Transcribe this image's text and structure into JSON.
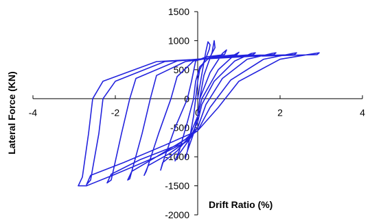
{
  "chart_data": {
    "type": "line",
    "title": "",
    "xlabel": "Drift Ratio (%)",
    "ylabel": "Lateral Force (KN)",
    "xlim": [
      -4,
      4
    ],
    "ylim": [
      -2000,
      1500
    ],
    "x_ticks": [
      -4,
      -2,
      0,
      2,
      4
    ],
    "y_ticks": [
      -2000,
      -1500,
      -1000,
      -500,
      0,
      500,
      1000,
      1500
    ],
    "x_tick_labels": [
      "-4",
      "-2",
      "0",
      "2",
      "4"
    ],
    "y_tick_labels": [
      "-2000",
      "-1500",
      "-1000",
      "-500",
      "0",
      "500",
      "1000",
      "1500"
    ],
    "grid": false,
    "legend": "none",
    "series_color": "#2222dd",
    "series": [
      {
        "points": [
          [
            0,
            0
          ],
          [
            0.1,
            420
          ],
          [
            0.2,
            820
          ],
          [
            0.25,
            980
          ],
          [
            0.3,
            930
          ],
          [
            0.28,
            850
          ],
          [
            0.2,
            700
          ],
          [
            0.05,
            500
          ],
          [
            0,
            300
          ],
          [
            -0.05,
            0
          ],
          [
            -0.1,
            -300
          ],
          [
            -0.25,
            -900
          ],
          [
            -0.3,
            -1030
          ],
          [
            -0.25,
            -900
          ],
          [
            -0.1,
            -600
          ],
          [
            0,
            -300
          ],
          [
            0.05,
            0
          ],
          [
            0.15,
            400
          ],
          [
            0.35,
            800
          ],
          [
            0.4,
            1000
          ],
          [
            0.42,
            880
          ],
          [
            0.3,
            720
          ],
          [
            0.05,
            550
          ],
          [
            -0.05,
            300
          ],
          [
            -0.1,
            0
          ],
          [
            -0.25,
            -400
          ],
          [
            -0.45,
            -900
          ],
          [
            -0.55,
            -1070
          ],
          [
            -0.5,
            -1000
          ],
          [
            -0.3,
            -800
          ],
          [
            -0.1,
            -600
          ],
          [
            0,
            -300
          ],
          [
            0.05,
            0
          ],
          [
            0.3,
            450
          ],
          [
            0.6,
            780
          ],
          [
            0.7,
            840
          ],
          [
            0.65,
            760
          ],
          [
            0.2,
            720
          ],
          [
            -0.05,
            650
          ],
          [
            -0.15,
            300
          ],
          [
            -0.25,
            0
          ],
          [
            -0.55,
            -500
          ],
          [
            -0.8,
            -1000
          ],
          [
            -0.9,
            -1230
          ],
          [
            -0.85,
            -1100
          ],
          [
            -0.5,
            -900
          ],
          [
            -0.2,
            -650
          ],
          [
            0,
            -300
          ],
          [
            0.1,
            0
          ],
          [
            0.5,
            500
          ],
          [
            0.9,
            760
          ],
          [
            1.0,
            800
          ],
          [
            0.95,
            760
          ],
          [
            0.4,
            720
          ],
          [
            -0.1,
            650
          ],
          [
            -0.5,
            380
          ],
          [
            -0.65,
            0
          ],
          [
            -0.95,
            -600
          ],
          [
            -1.25,
            -1250
          ],
          [
            -1.3,
            -1320
          ],
          [
            -1.2,
            -1150
          ],
          [
            -0.7,
            -950
          ],
          [
            -0.2,
            -700
          ],
          [
            0,
            -400
          ],
          [
            0.1,
            -100
          ],
          [
            0.4,
            300
          ],
          [
            0.9,
            650
          ],
          [
            1.3,
            780
          ],
          [
            1.4,
            790
          ],
          [
            1.35,
            760
          ],
          [
            0.5,
            720
          ],
          [
            -0.3,
            640
          ],
          [
            -1.0,
            400
          ],
          [
            -1.15,
            0
          ],
          [
            -1.35,
            -600
          ],
          [
            -1.65,
            -1380
          ],
          [
            -1.7,
            -1400
          ],
          [
            -1.6,
            -1250
          ],
          [
            -1.0,
            -1000
          ],
          [
            -0.3,
            -750
          ],
          [
            0,
            -500
          ],
          [
            0.2,
            -100
          ],
          [
            0.6,
            350
          ],
          [
            1.2,
            680
          ],
          [
            1.8,
            780
          ],
          [
            1.9,
            790
          ],
          [
            1.85,
            760
          ],
          [
            0.8,
            730
          ],
          [
            -0.5,
            650
          ],
          [
            -1.5,
            350
          ],
          [
            -1.65,
            0
          ],
          [
            -1.85,
            -600
          ],
          [
            -2.1,
            -1400
          ],
          [
            -2.2,
            -1450
          ],
          [
            -2.1,
            -1300
          ],
          [
            -1.4,
            -1050
          ],
          [
            -0.5,
            -800
          ],
          [
            0,
            -550
          ],
          [
            0.3,
            -150
          ],
          [
            0.8,
            320
          ],
          [
            1.6,
            680
          ],
          [
            2.3,
            780
          ],
          [
            2.4,
            790
          ],
          [
            2.35,
            760
          ],
          [
            1.0,
            730
          ],
          [
            -0.8,
            640
          ],
          [
            -2.0,
            300
          ],
          [
            -2.3,
            0
          ],
          [
            -2.4,
            -600
          ],
          [
            -2.6,
            -1400
          ],
          [
            -2.7,
            -1480
          ],
          [
            -2.6,
            -1320
          ],
          [
            -1.8,
            -1100
          ],
          [
            -0.8,
            -800
          ],
          [
            0,
            -550
          ],
          [
            0.5,
            -150
          ],
          [
            1.0,
            300
          ],
          [
            2.0,
            680
          ],
          [
            2.85,
            780
          ],
          [
            2.95,
            790
          ],
          [
            2.9,
            760
          ],
          [
            1.3,
            730
          ],
          [
            -1.0,
            640
          ],
          [
            -2.3,
            300
          ],
          [
            -2.55,
            0
          ],
          [
            -2.65,
            -600
          ],
          [
            -2.8,
            -1350
          ],
          [
            -2.9,
            -1500
          ],
          [
            -2.7,
            -1500
          ],
          [
            -2.0,
            -1300
          ],
          [
            -1.0,
            -1000
          ],
          [
            -0.3,
            -700
          ],
          [
            0,
            -500
          ]
        ]
      }
    ]
  }
}
